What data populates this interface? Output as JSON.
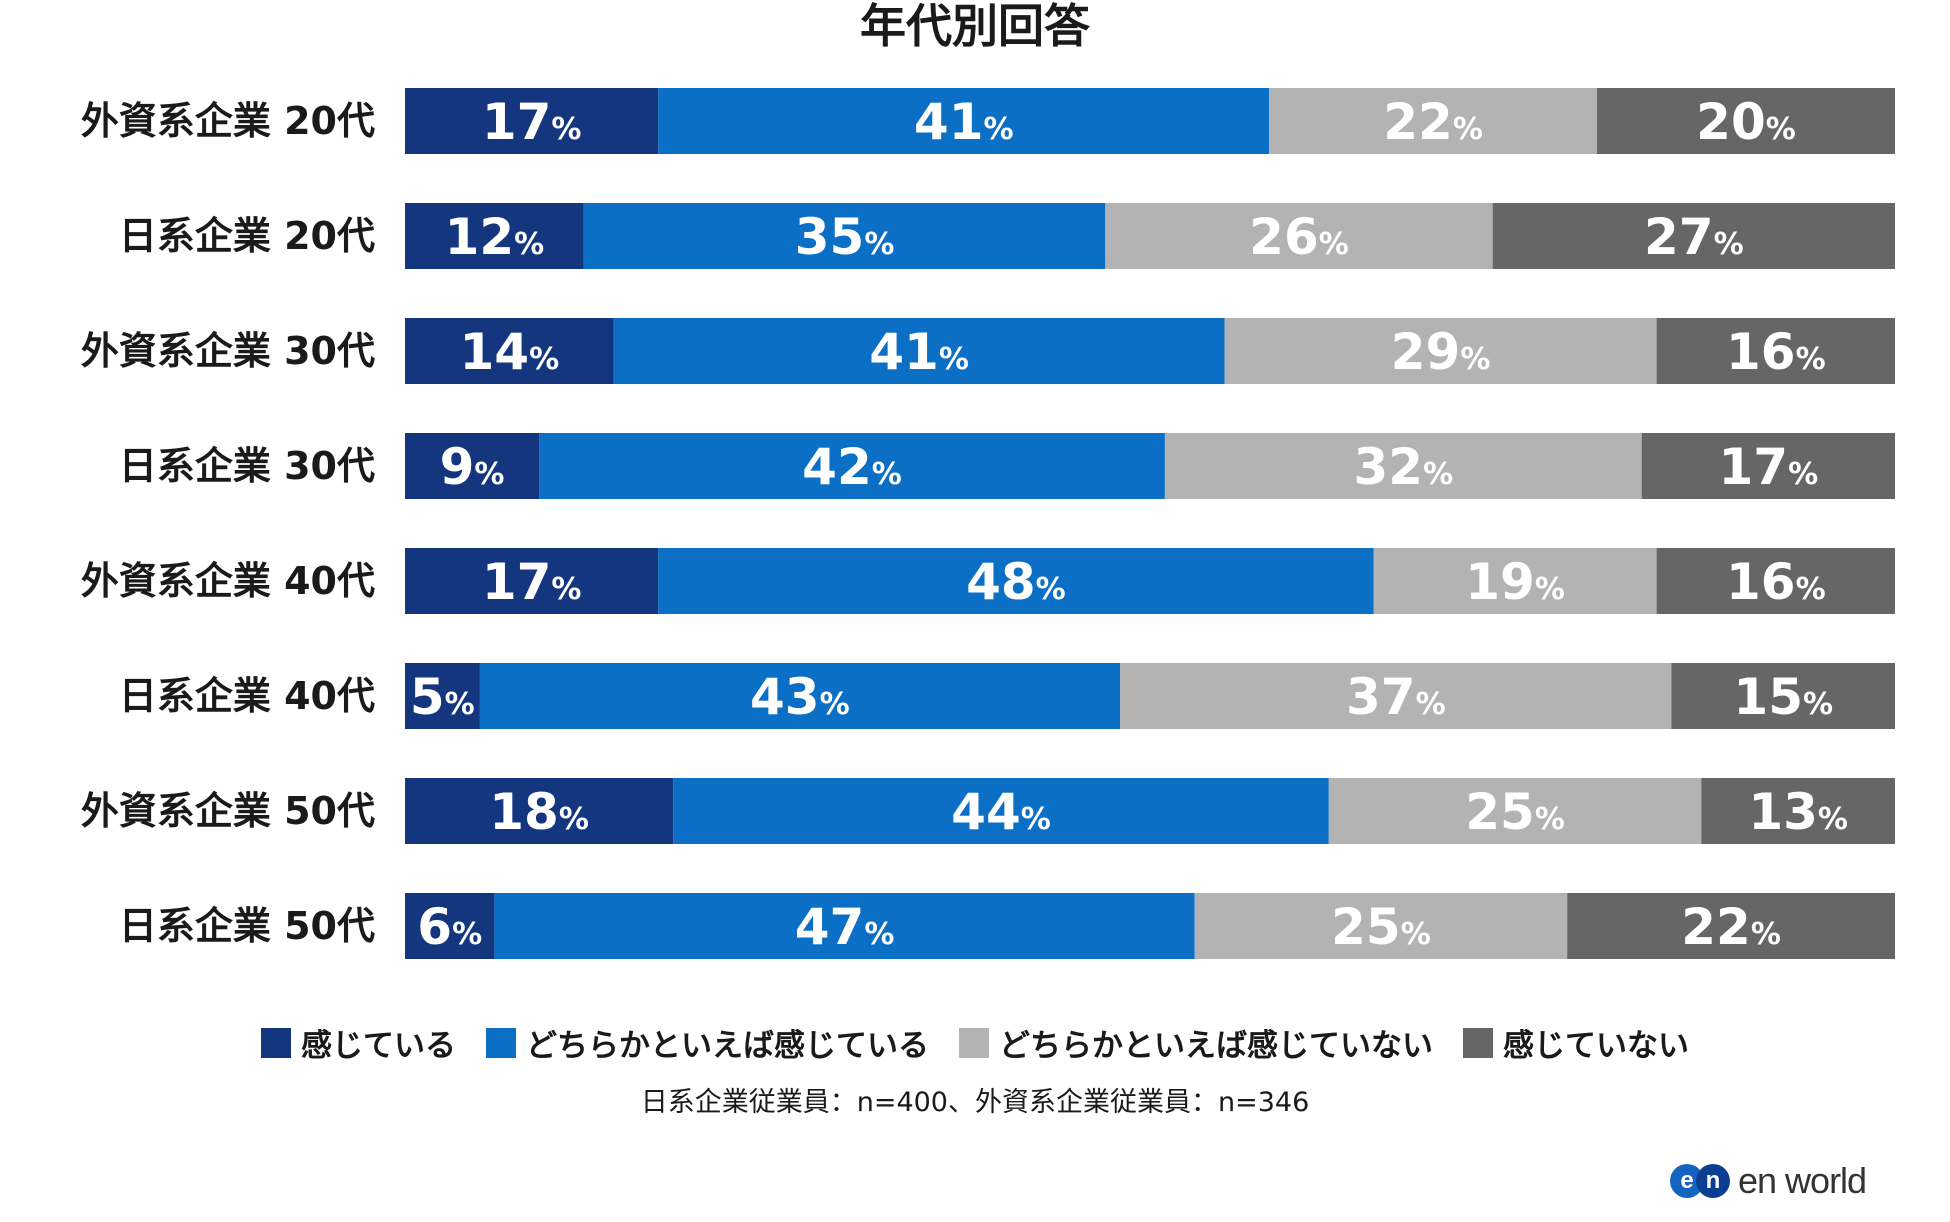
{
  "chart_data": {
    "type": "bar",
    "orientation": "horizontal",
    "stacked": true,
    "title": "年代別回答",
    "categories": [
      "外資系企業 20代",
      "日系企業 20代",
      "外資系企業 30代",
      "日系企業 30代",
      "外資系企業 40代",
      "日系企業 40代",
      "外資系企業 50代",
      "日系企業 50代"
    ],
    "series": [
      {
        "name": "感じている",
        "color": "#14367f",
        "label_color": "#ffffff",
        "values": [
          17,
          12,
          14,
          9,
          17,
          5,
          18,
          6
        ]
      },
      {
        "name": "どちらかといえば感じている",
        "color": "#0b6fc6",
        "label_color": "#ffffff",
        "values": [
          41,
          35,
          41,
          42,
          48,
          43,
          44,
          47
        ]
      },
      {
        "name": "どちらかといえば感じていない",
        "color": "#b3b3b3",
        "label_color": "#ffffff",
        "values": [
          22,
          26,
          29,
          32,
          19,
          37,
          25,
          25
        ]
      },
      {
        "name": "感じていない",
        "color": "#666666",
        "label_color": "#ffffff",
        "values": [
          20,
          27,
          16,
          17,
          16,
          15,
          13,
          22
        ]
      }
    ],
    "value_suffix": "%",
    "xlim": [
      0,
      100
    ],
    "legend_position": "bottom"
  },
  "footnote": "日系企業従業員：n=400、外資系企業従業員：n=346",
  "logo": {
    "badge_letters": [
      "e",
      "n"
    ],
    "text": "en world"
  }
}
